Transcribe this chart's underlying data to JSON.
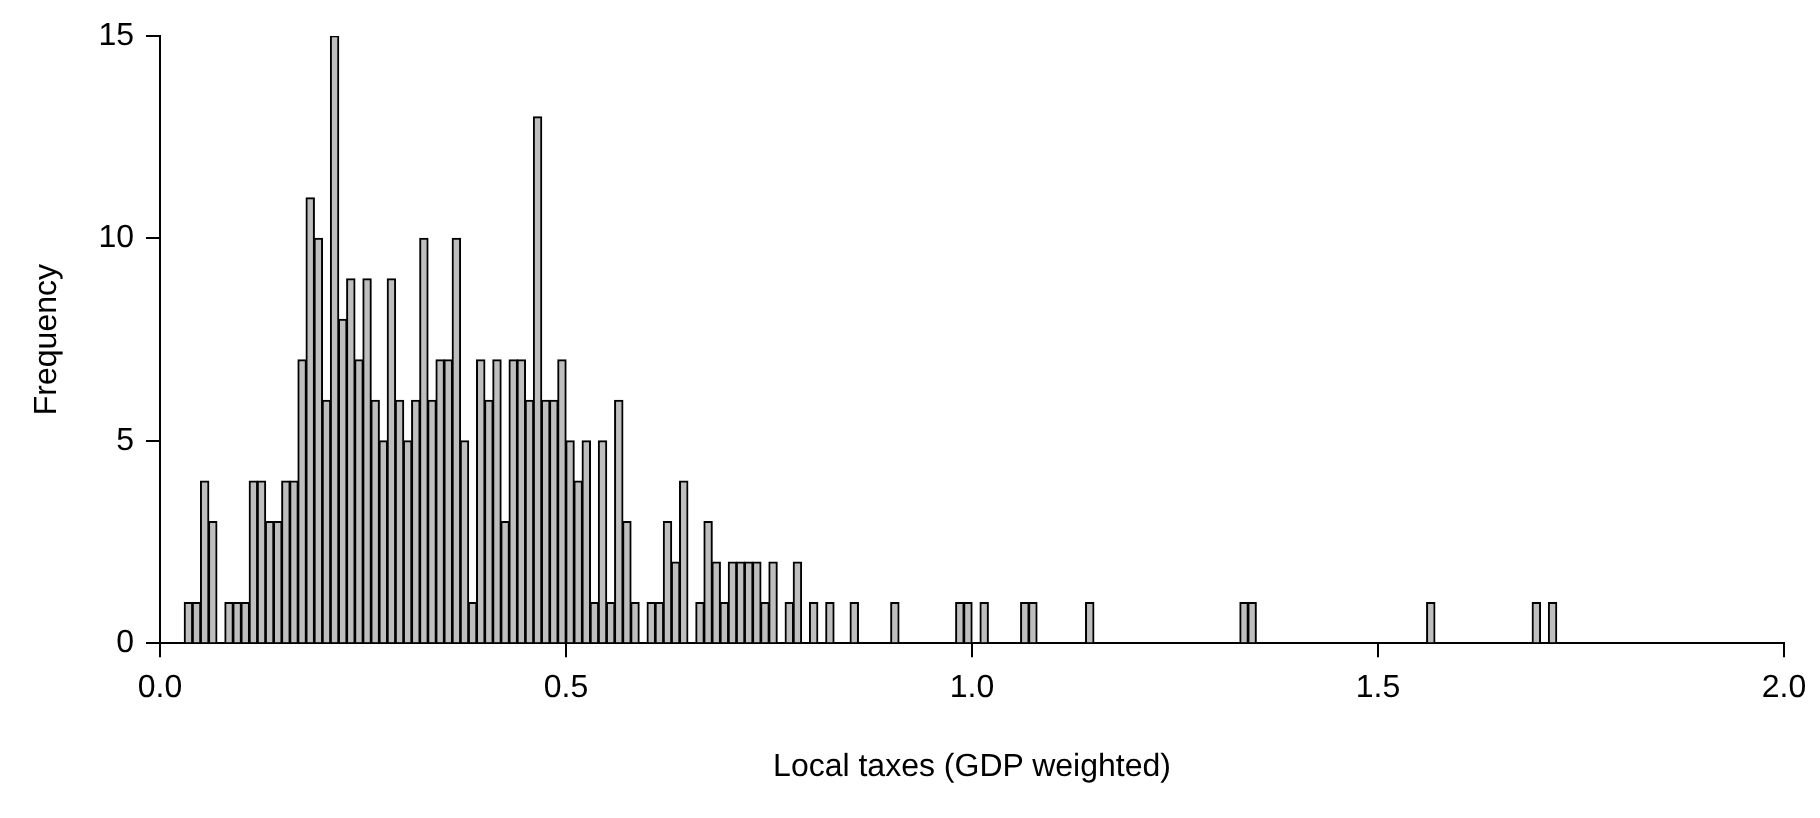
{
  "chart_data": {
    "type": "histogram",
    "xlabel": "Local taxes (GDP weighted)",
    "ylabel": "Frequency",
    "color": "#bebebe",
    "bins": [
      0,
      0.01,
      0.02,
      0.03,
      0.04,
      0.05,
      0.06,
      0.07,
      0.08,
      0.09,
      0.1,
      0.11,
      0.12,
      0.13,
      0.14,
      0.15,
      0.16,
      0.17,
      0.18,
      0.19,
      0.2,
      0.21,
      0.22,
      0.23,
      0.24,
      0.25,
      0.26,
      0.27,
      0.28,
      0.29,
      0.3,
      0.31,
      0.32,
      0.33,
      0.34,
      0.35,
      0.36,
      0.37,
      0.38,
      0.39,
      0.4,
      0.41,
      0.42,
      0.43,
      0.44,
      0.45,
      0.46,
      0.47,
      0.48,
      0.49,
      0.5,
      0.51,
      0.52,
      0.53,
      0.54,
      0.55,
      0.56,
      0.57,
      0.58,
      0.59,
      0.6,
      0.61,
      0.62,
      0.63,
      0.64,
      0.65,
      0.66,
      0.67,
      0.68,
      0.69,
      0.7,
      0.71,
      0.72,
      0.73,
      0.74,
      0.75,
      0.76,
      0.77,
      0.78,
      0.79,
      0.8,
      0.81,
      0.82,
      0.83,
      0.84,
      0.85,
      0.86,
      0.87,
      0.88,
      0.89,
      0.9,
      0.91,
      0.92,
      0.93,
      0.94,
      0.95,
      0.96,
      0.97,
      0.98,
      0.99,
      1,
      1.01,
      1.02,
      1.03,
      1.04,
      1.05,
      1.06,
      1.07,
      1.08,
      1.09,
      1.1,
      1.11,
      1.12,
      1.13,
      1.14,
      1.15,
      1.16,
      1.17,
      1.18,
      1.19,
      1.2,
      1.21,
      1.22,
      1.23,
      1.24,
      1.25,
      1.26,
      1.27,
      1.28,
      1.29,
      1.3,
      1.31,
      1.32,
      1.33,
      1.34,
      1.35,
      1.36,
      1.37,
      1.38,
      1.39,
      1.4,
      1.41,
      1.42,
      1.43,
      1.44,
      1.45,
      1.46,
      1.47,
      1.48,
      1.49,
      1.5,
      1.51,
      1.52,
      1.53,
      1.54,
      1.55,
      1.56,
      1.57,
      1.58,
      1.59,
      1.6,
      1.61,
      1.62,
      1.63,
      1.64,
      1.65,
      1.66,
      1.67,
      1.68,
      1.69,
      1.7,
      1.71,
      1.72
    ],
    "values": [
      0,
      0,
      0,
      1,
      1,
      4,
      3,
      0,
      1,
      1,
      1,
      4,
      4,
      3,
      3,
      4,
      4,
      7,
      11,
      10,
      6,
      15,
      8,
      9,
      7,
      9,
      6,
      5,
      9,
      6,
      5,
      6,
      10,
      6,
      7,
      7,
      10,
      5,
      1,
      7,
      6,
      7,
      3,
      7,
      7,
      6,
      13,
      6,
      6,
      7,
      5,
      4,
      5,
      1,
      5,
      1,
      6,
      3,
      1,
      0,
      1,
      1,
      3,
      2,
      4,
      0,
      1,
      3,
      2,
      1,
      2,
      2,
      2,
      2,
      1,
      2,
      0,
      1,
      2,
      0,
      1,
      0,
      1,
      0,
      0,
      1,
      0,
      0,
      0,
      0,
      1,
      0,
      0,
      0,
      0,
      0,
      0,
      0,
      1,
      1,
      0,
      1,
      0,
      0,
      0,
      0,
      1,
      1,
      0,
      0,
      0,
      0,
      0,
      0,
      1,
      0,
      0,
      0,
      0,
      0,
      0,
      0,
      0,
      0,
      0,
      0,
      0,
      0,
      0,
      0,
      0,
      0,
      0,
      1,
      1,
      0,
      0,
      0,
      0,
      0,
      0,
      0,
      0,
      0,
      0,
      0,
      0,
      0,
      0,
      0,
      0,
      0,
      0,
      0,
      0,
      0,
      1,
      0,
      0,
      0,
      0,
      0,
      0,
      0,
      0,
      0,
      0,
      0,
      0,
      1,
      0,
      1
    ],
    "xlim": [
      0,
      2
    ],
    "xticks": [
      {
        "value": 0,
        "label": "0.0"
      },
      {
        "value": 0.5,
        "label": "0.5"
      },
      {
        "value": 1,
        "label": "1.0"
      },
      {
        "value": 1.5,
        "label": "1.5"
      },
      {
        "value": 2,
        "label": "2.0"
      }
    ],
    "ylim": [
      0,
      15
    ],
    "yticks": [
      0,
      5,
      10,
      15
    ]
  }
}
